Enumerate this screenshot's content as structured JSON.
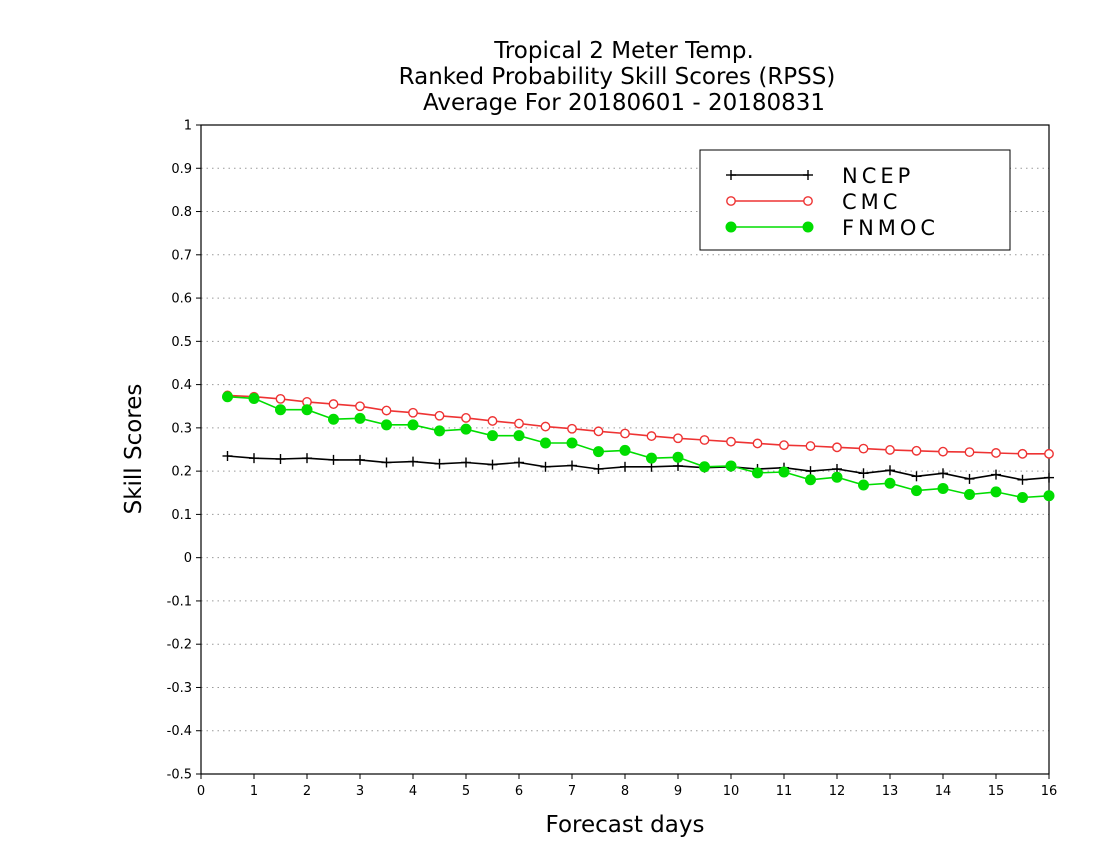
{
  "chart_data": {
    "type": "line",
    "title": [
      "Tropical 2 Meter Temp.",
      "Ranked Probability Skill Scores (RPSS)",
      "Average For 20180601 - 20180831"
    ],
    "xlabel": "Forecast days",
    "ylabel": "Skill Scores",
    "xlim": [
      0,
      16
    ],
    "ylim": [
      -0.5,
      1
    ],
    "x_ticks": [
      0,
      1,
      2,
      3,
      4,
      5,
      6,
      7,
      8,
      9,
      10,
      11,
      12,
      13,
      14,
      15,
      16
    ],
    "y_ticks": [
      -0.5,
      -0.4,
      -0.3,
      -0.2,
      -0.1,
      0,
      0.1,
      0.2,
      0.3,
      0.4,
      0.5,
      0.6,
      0.7,
      0.8,
      0.9,
      1
    ],
    "y_tick_labels": [
      "-0.5",
      "-0.4",
      "-0.3",
      "-0.2",
      "-0.1",
      "0",
      "0.1",
      "0.2",
      "0.3",
      "0.4",
      "0.5",
      "0.6",
      "0.7",
      "0.8",
      "0.9",
      "1"
    ],
    "grid": "horizontal dotted",
    "legend_position": "top-right",
    "x": [
      0.5,
      1,
      1.5,
      2,
      2.5,
      3,
      3.5,
      4,
      4.5,
      5,
      5.5,
      6,
      6.5,
      7,
      7.5,
      8,
      8.5,
      9,
      9.5,
      10,
      10.5,
      11,
      11.5,
      12,
      12.5,
      13,
      13.5,
      14,
      14.5,
      15,
      15.5,
      16
    ],
    "series": [
      {
        "name": "NCEP",
        "color": "#000000",
        "marker": "plus",
        "values": [
          0.235,
          0.23,
          0.228,
          0.23,
          0.226,
          0.226,
          0.22,
          0.222,
          0.217,
          0.22,
          0.215,
          0.22,
          0.21,
          0.213,
          0.205,
          0.21,
          0.21,
          0.212,
          0.208,
          0.21,
          0.205,
          0.208,
          0.2,
          0.205,
          0.195,
          0.202,
          0.188,
          0.195,
          0.182,
          0.192,
          0.18,
          0.185
        ]
      },
      {
        "name": "CMC",
        "color": "#ee3333",
        "marker": "open-circle",
        "values": [
          0.375,
          0.372,
          0.367,
          0.36,
          0.355,
          0.35,
          0.34,
          0.335,
          0.328,
          0.323,
          0.316,
          0.31,
          0.303,
          0.298,
          0.292,
          0.287,
          0.281,
          0.276,
          0.272,
          0.268,
          0.264,
          0.26,
          0.258,
          0.255,
          0.252,
          0.249,
          0.247,
          0.245,
          0.244,
          0.242,
          0.24,
          0.24
        ]
      },
      {
        "name": "FNMOC",
        "color": "#00dd00",
        "marker": "filled-circle",
        "values": [
          0.372,
          0.368,
          0.342,
          0.342,
          0.32,
          0.322,
          0.307,
          0.307,
          0.293,
          0.297,
          0.282,
          0.282,
          0.265,
          0.265,
          0.245,
          0.248,
          0.23,
          0.232,
          0.21,
          0.212,
          0.196,
          0.198,
          0.18,
          0.186,
          0.168,
          0.172,
          0.155,
          0.16,
          0.146,
          0.152,
          0.139,
          0.143
        ]
      }
    ]
  }
}
